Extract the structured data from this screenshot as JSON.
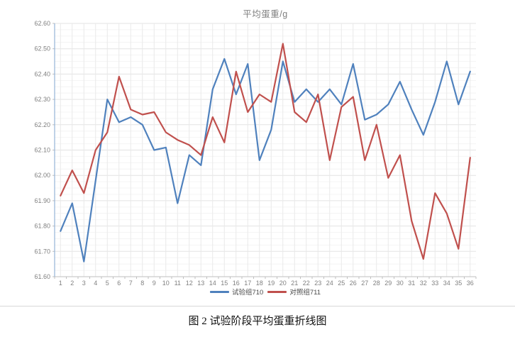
{
  "page": {
    "caption": "图 2 试验阶段平均蛋重折线图"
  },
  "chart_data": {
    "type": "line",
    "title": "平均蛋重/g",
    "categories": [
      1,
      2,
      3,
      4,
      5,
      6,
      7,
      8,
      9,
      10,
      11,
      12,
      13,
      14,
      15,
      16,
      17,
      18,
      19,
      20,
      21,
      22,
      23,
      24,
      25,
      26,
      27,
      28,
      29,
      30,
      31,
      32,
      33,
      34,
      35,
      36
    ],
    "series": [
      {
        "name": "试验组710",
        "color": "#4F81BD",
        "values": [
          61.78,
          61.89,
          61.66,
          61.98,
          62.3,
          62.21,
          62.23,
          62.2,
          62.1,
          62.11,
          61.89,
          62.08,
          62.04,
          62.34,
          62.46,
          62.32,
          62.44,
          62.06,
          62.18,
          62.45,
          62.29,
          62.34,
          62.29,
          62.34,
          62.28,
          62.44,
          62.22,
          62.24,
          62.28,
          62.37,
          62.26,
          62.16,
          62.29,
          62.45,
          62.28,
          62.41
        ]
      },
      {
        "name": "对照组711",
        "color": "#C0504D",
        "values": [
          61.92,
          62.02,
          61.93,
          62.1,
          62.17,
          62.39,
          62.26,
          62.24,
          62.25,
          62.17,
          62.14,
          62.12,
          62.08,
          62.23,
          62.13,
          62.41,
          62.25,
          62.32,
          62.29,
          62.52,
          62.25,
          62.21,
          62.32,
          62.06,
          62.27,
          62.31,
          62.06,
          62.2,
          61.99,
          62.08,
          61.82,
          61.67,
          61.93,
          61.85,
          61.71,
          62.07
        ]
      }
    ],
    "xlabel": "",
    "ylabel": "",
    "ylim": [
      61.6,
      62.6
    ],
    "ytick_step": 0.1,
    "ytick_minor_step": 0.025,
    "grid": true,
    "legend_position": "bottom",
    "colors": {
      "y_axis_line": "#95B3D7",
      "x_axis_line": "#bfbfbf",
      "major_grid": "#e3e3e3",
      "minor_grid": "#f4f4f4",
      "vertical_grid": "#e9e9e9",
      "tick_label": "#808080",
      "title_text": "#7f7f7f"
    }
  }
}
